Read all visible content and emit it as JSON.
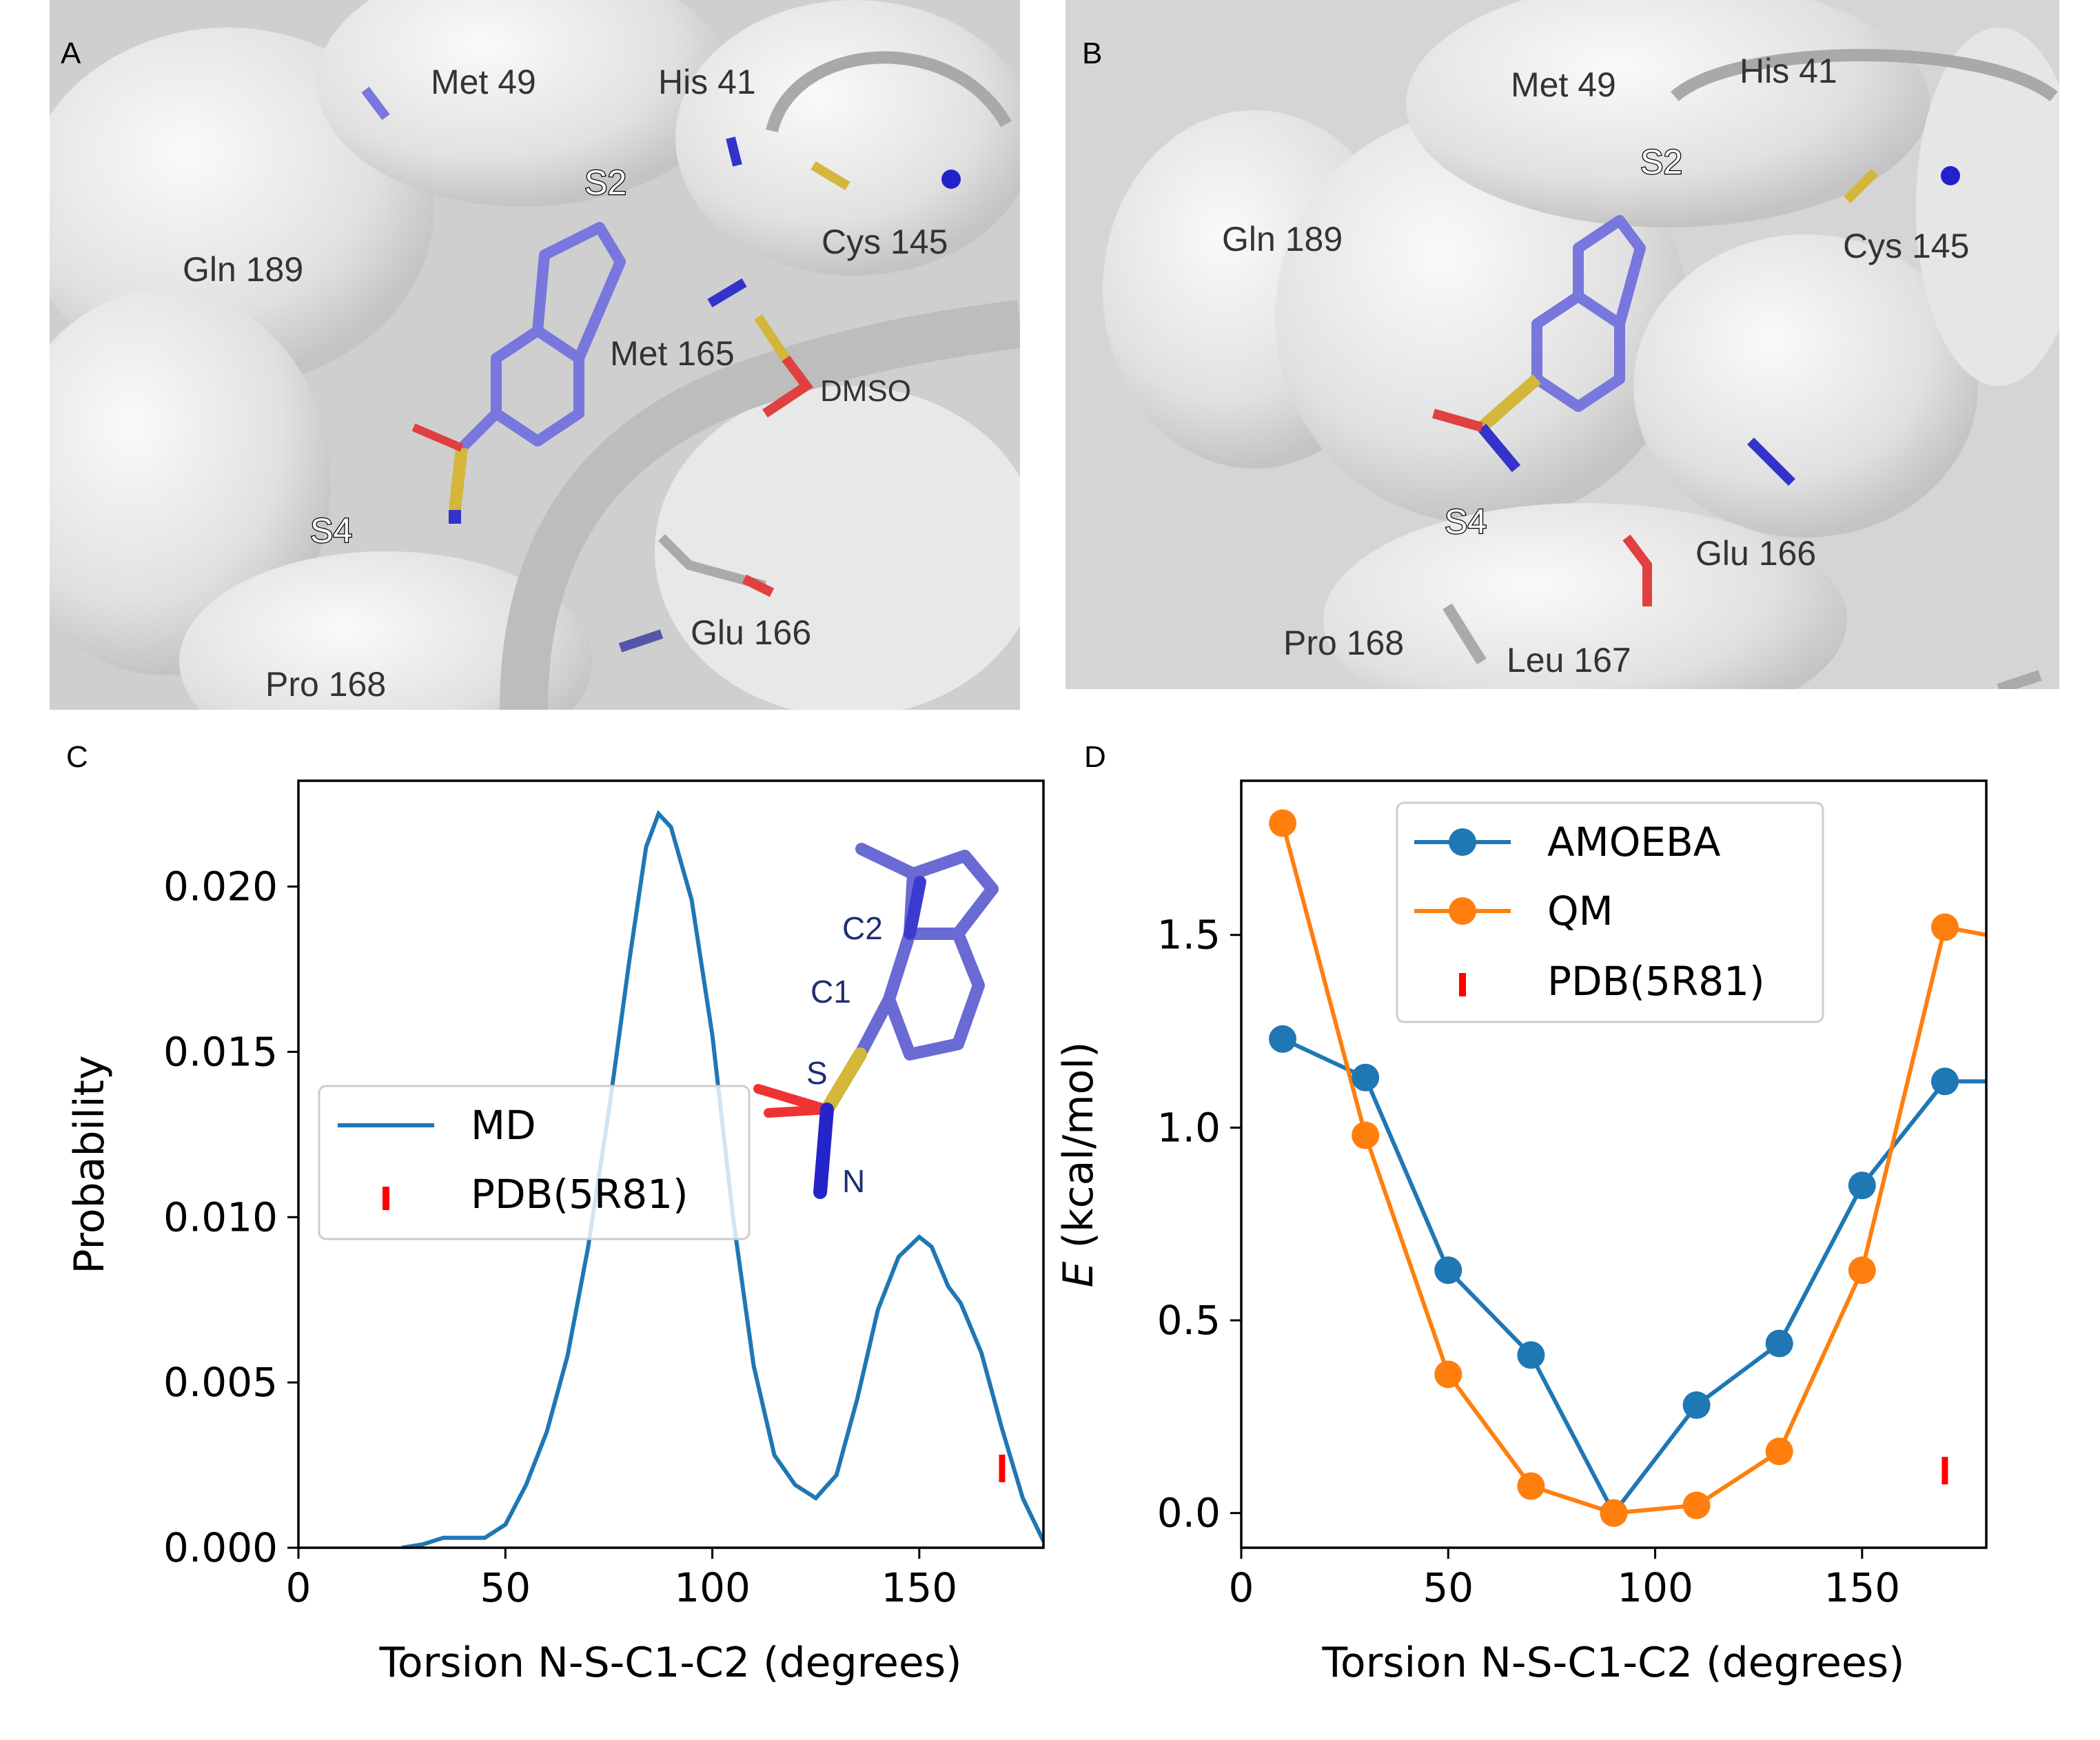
{
  "panels": {
    "A": {
      "letter": "A",
      "residues": [
        "Met 49",
        "His 41",
        "Cys 145",
        "Gln 189",
        "Met 165",
        "DMSO",
        "Glu 166",
        "Pro 168"
      ],
      "pockets": [
        "S2",
        "S4"
      ]
    },
    "B": {
      "letter": "B",
      "residues": [
        "Met 49",
        "His 41",
        "Gln 189",
        "Cys 145",
        "Glu 166",
        "Pro 168",
        "Leu 167"
      ],
      "pockets": [
        "S2",
        "S4"
      ]
    }
  },
  "chart_data": [
    {
      "panel": "C",
      "type": "line",
      "xlabel": "Torsion N-S-C1-C2 (degrees)",
      "ylabel": "Probability",
      "xlim": [
        0,
        180
      ],
      "ylim": [
        0,
        0.0232
      ],
      "xticks": [
        0,
        50,
        100,
        150
      ],
      "yticks": [
        0.0,
        0.005,
        0.01,
        0.015,
        0.02
      ],
      "ytick_labels": [
        "0.000",
        "0.005",
        "0.010",
        "0.015",
        "0.020"
      ],
      "series": [
        {
          "name": "MD",
          "color": "#1f77b4",
          "x": [
            25,
            30,
            35,
            40,
            45,
            50,
            55,
            60,
            65,
            70,
            75,
            80,
            84,
            87,
            90,
            95,
            100,
            105,
            110,
            115,
            120,
            125,
            130,
            135,
            140,
            145,
            150,
            153,
            157,
            160,
            165,
            170,
            175,
            180
          ],
          "y": [
            0.0,
            0.0001,
            0.0003,
            0.0003,
            0.0003,
            0.0007,
            0.0019,
            0.0035,
            0.0058,
            0.0091,
            0.0132,
            0.0178,
            0.0212,
            0.0222,
            0.0218,
            0.0196,
            0.0155,
            0.01,
            0.0055,
            0.0028,
            0.0019,
            0.0015,
            0.0022,
            0.0045,
            0.0072,
            0.0088,
            0.0094,
            0.0091,
            0.0079,
            0.0074,
            0.0059,
            0.0036,
            0.0015,
            0.0002
          ]
        }
      ],
      "markers": [
        {
          "name": "PDB(5R81)",
          "x": 170,
          "y": 0.0024,
          "color": "#ff0000"
        }
      ],
      "legend": {
        "placement": "center-left",
        "entries": [
          "MD",
          "PDB(5R81)"
        ]
      },
      "inset": {
        "atom_labels": [
          "C2",
          "C1",
          "S",
          "N"
        ]
      },
      "panel_label": "C"
    },
    {
      "panel": "D",
      "type": "line",
      "xlabel": "Torsion N-S-C1-C2 (degrees)",
      "ylabel": "E (kcal/mol)",
      "ylabel_italic": "E",
      "ylabel_rest": " (kcal/mol)",
      "xlim": [
        0,
        180
      ],
      "ylim": [
        -0.09,
        1.9
      ],
      "xticks": [
        0,
        50,
        100,
        150
      ],
      "yticks": [
        0.0,
        0.5,
        1.0,
        1.5
      ],
      "ytick_labels": [
        "0.0",
        "0.5",
        "1.0",
        "1.5"
      ],
      "series": [
        {
          "name": "AMOEBA",
          "color": "#1f77b4",
          "x": [
            10,
            30,
            50,
            70,
            90,
            110,
            130,
            150,
            170,
            180
          ],
          "y": [
            1.23,
            1.13,
            0.63,
            0.41,
            0.0,
            0.28,
            0.44,
            0.85,
            1.12,
            1.12
          ],
          "marker_count": 9
        },
        {
          "name": "QM",
          "color": "#ff7f0e",
          "x": [
            10,
            30,
            50,
            70,
            90,
            110,
            130,
            150,
            170,
            180
          ],
          "y": [
            1.79,
            0.98,
            0.36,
            0.07,
            0.0,
            0.02,
            0.16,
            0.63,
            1.52,
            1.5
          ],
          "marker_count": 9
        }
      ],
      "markers": [
        {
          "name": "PDB(5R81)",
          "x": 170,
          "y": 0.11,
          "color": "#ff0000"
        }
      ],
      "legend": {
        "placement": "upper-center",
        "entries": [
          "AMOEBA",
          "QM",
          "PDB(5R81)"
        ]
      },
      "panel_label": "D"
    }
  ]
}
